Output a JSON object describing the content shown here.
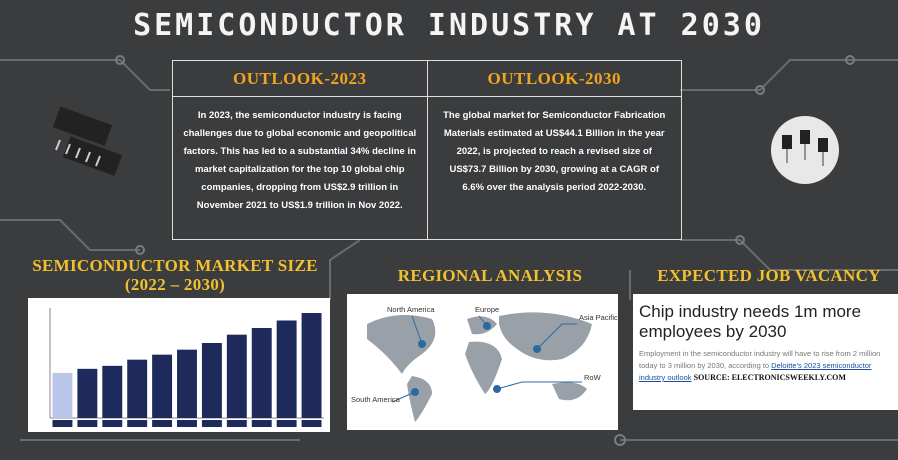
{
  "title": "SEMICONDUCTOR INDUSTRY AT 2030",
  "outlook_2023": {
    "heading": "OUTLOOK-2023",
    "text": "In 2023, the semiconductor industry is facing challenges due to global economic and geopolitical factors. This has led to a substantial 34% decline in market capitalization for the top 10 global chip companies, dropping from US$2.9 trillion in November 2021 to US$1.9 trillion in Nov 2022."
  },
  "outlook_2030": {
    "heading": "OUTLOOK-2030",
    "text": "The global market for Semiconductor Fabrication Materials estimated at US$44.1 Billion in the year 2022, is projected to reach a revised size of US$73.7 Billion by 2030, growing at a CAGR of 6.6% over the analysis period 2022-2030."
  },
  "market_size": {
    "heading": "SEMICONDUCTOR MARKET SIZE (2022 – 2030)",
    "chart_data": {
      "type": "bar",
      "values": [
        541,
        590,
        626,
        700,
        760,
        820,
        900,
        1000,
        1080,
        1170,
        1260
      ],
      "ylim": [
        0,
        1320
      ],
      "colors": [
        "#b9c6ea",
        "#1f2a5c",
        "#1f2a5c",
        "#1f2a5c",
        "#1f2a5c",
        "#1f2a5c",
        "#1f2a5c",
        "#1f2a5c",
        "#1f2a5c",
        "#1f2a5c",
        "#1f2a5c"
      ]
    }
  },
  "regional": {
    "heading": "REGIONAL ANALYSIS",
    "regions": [
      "North America",
      "Europe",
      "Asia Pacific",
      "RoW",
      "South America"
    ]
  },
  "jobs": {
    "heading": "EXPECTED JOB VACANCY",
    "headline": "Chip industry needs 1m more employees by 2030",
    "body": "Employment in the semiconductor industry will have to rise from 2 million today to 3 million by 2030, according to",
    "link": "Deloitte's 2023 semiconductor industry outlook",
    "source": "SOURCE: ELECTRONICSWEEKLY.COM"
  }
}
